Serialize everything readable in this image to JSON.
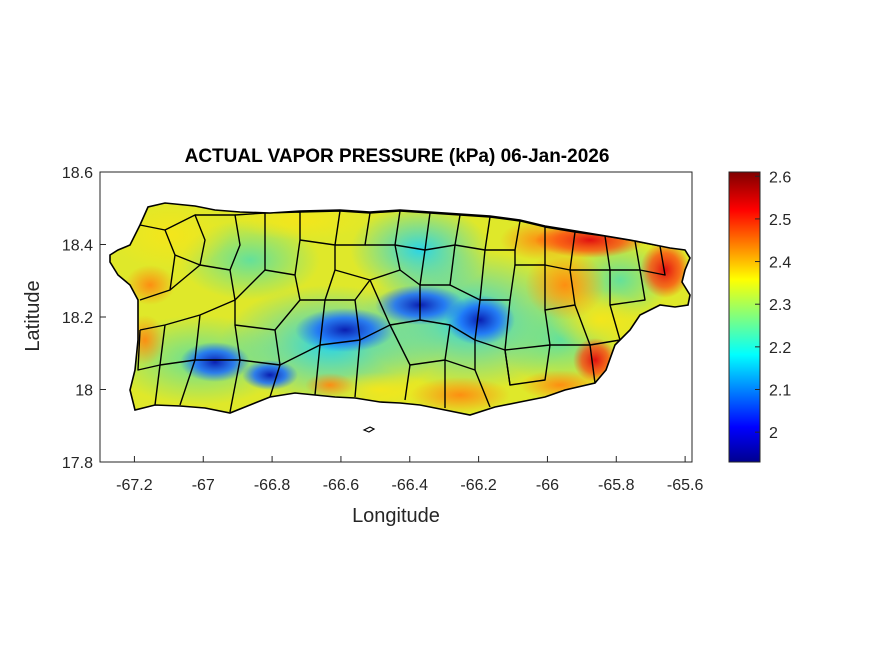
{
  "title": "ACTUAL VAPOR PRESSURE (kPa) 06-Jan-2026",
  "xlabel": "Longitude",
  "ylabel": "Latitude",
  "x_ticks": [
    "-67.2",
    "-67",
    "-66.8",
    "-66.6",
    "-66.4",
    "-66.2",
    "-66",
    "-65.8",
    "-65.6"
  ],
  "y_ticks": [
    "18.6",
    "18.4",
    "18.2",
    "18",
    "17.8"
  ],
  "colorbar": {
    "min": 1.93,
    "max": 2.61,
    "ticks": [
      "2.6",
      "2.5",
      "2.4",
      "2.3",
      "2.2",
      "2.1",
      "2"
    ],
    "colormap": "jet"
  },
  "chart_data": {
    "type": "heatmap",
    "title": "ACTUAL VAPOR PRESSURE (kPa) 06-Jan-2026",
    "xlabel": "Longitude",
    "ylabel": "Latitude",
    "xlim": [
      -67.3,
      -65.58
    ],
    "ylim": [
      17.8,
      18.6
    ],
    "xticks": [
      -67.2,
      -67,
      -66.8,
      -66.6,
      -66.4,
      -66.2,
      -66,
      -65.8,
      -65.6
    ],
    "yticks": [
      18.6,
      18.4,
      18.2,
      18,
      17.8
    ],
    "color_range": [
      1.93,
      2.61
    ],
    "colormap": "jet",
    "grid": false,
    "region": "Puerto Rico municipalities"
  }
}
